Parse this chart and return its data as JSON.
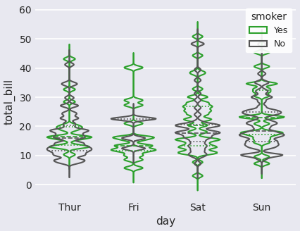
{
  "xlabel": "day",
  "ylabel": "total_bill",
  "hue": "smoker",
  "hue_order": [
    "Yes",
    "No"
  ],
  "x": "day",
  "y": "total_bill",
  "day_order": [
    "Thur",
    "Fri",
    "Sat",
    "Sun"
  ],
  "ylim": [
    -5,
    62
  ],
  "yticks": [
    0,
    10,
    20,
    30,
    40,
    50,
    60
  ],
  "bg_color": "#e8e8f0",
  "green_color": "#2ca02c",
  "gray_color": "#555555",
  "legend_title": "smoker",
  "legend_labels": [
    "Yes",
    "No"
  ],
  "figsize": [
    4.26,
    3.28
  ],
  "dpi": 100,
  "grid_color": "#ffffff",
  "linewidth": 1.5,
  "bw_adjust": 0.5,
  "cut": 2
}
